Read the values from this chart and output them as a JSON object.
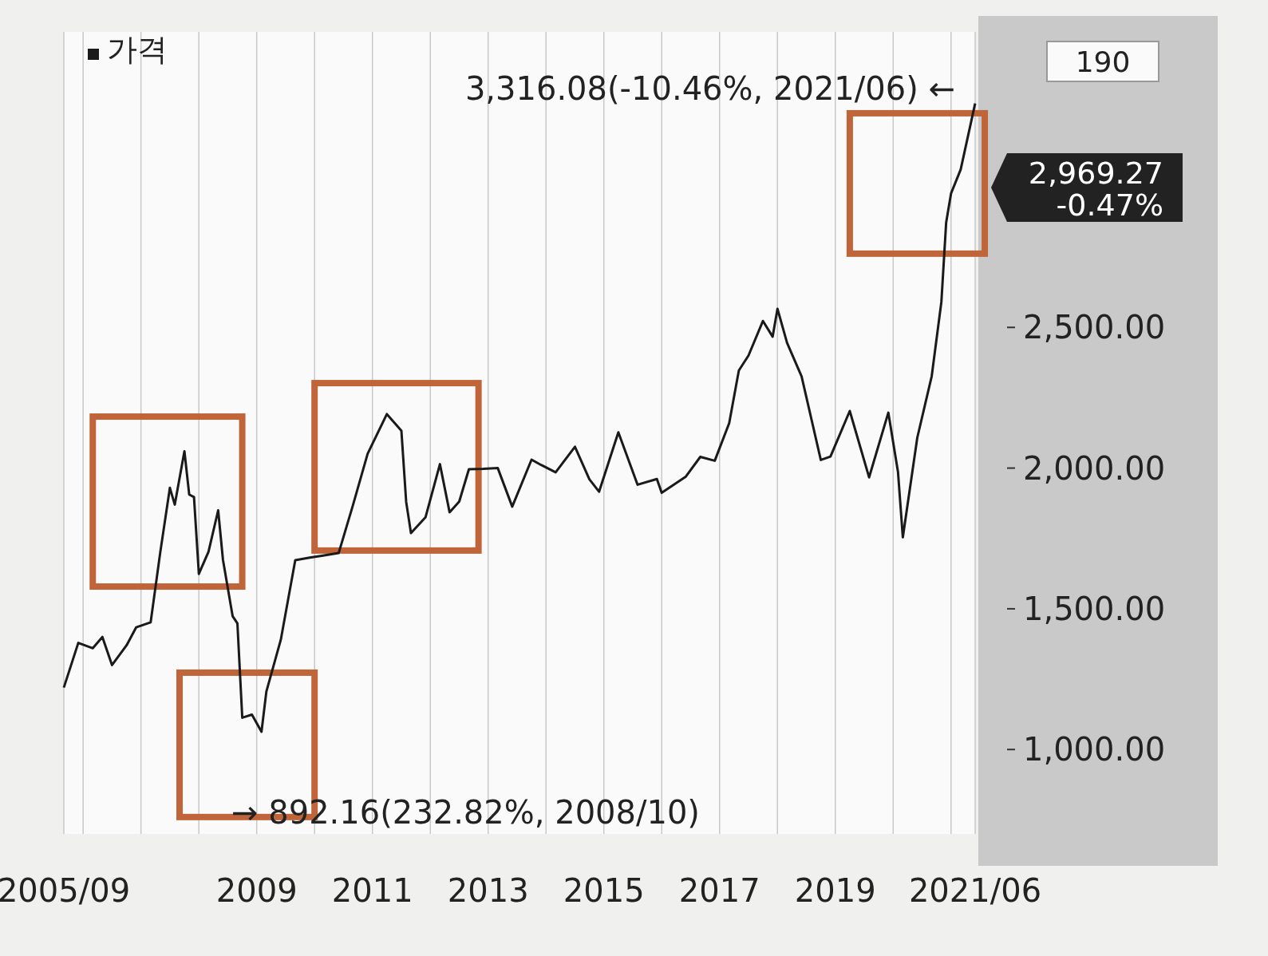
{
  "chart_data": {
    "type": "line",
    "x": [
      "2005-09",
      "2005-12",
      "2006-03",
      "2006-05",
      "2006-07",
      "2006-10",
      "2006-12",
      "2007-03",
      "2007-05",
      "2007-07",
      "2007-08",
      "2007-10",
      "2007-11",
      "2007-12",
      "2008-01",
      "2008-03",
      "2008-05",
      "2008-06",
      "2008-08",
      "2008-09",
      "2008-10",
      "2008-12",
      "2009-02",
      "2009-03",
      "2009-06",
      "2009-09",
      "2009-12",
      "2010-03",
      "2010-06",
      "2010-09",
      "2010-12",
      "2011-04",
      "2011-07",
      "2011-08",
      "2011-09",
      "2011-12",
      "2012-03",
      "2012-05",
      "2012-07",
      "2012-09",
      "2012-12",
      "2013-03",
      "2013-06",
      "2013-10",
      "2013-12",
      "2014-03",
      "2014-07",
      "2014-10",
      "2014-12",
      "2015-04",
      "2015-08",
      "2015-12",
      "2016-01",
      "2016-06",
      "2016-09",
      "2016-12",
      "2017-03",
      "2017-05",
      "2017-07",
      "2017-10",
      "2017-12",
      "2018-01",
      "2018-03",
      "2018-06",
      "2018-10",
      "2018-12",
      "2019-04",
      "2019-08",
      "2019-12",
      "2020-02",
      "2020-03",
      "2020-06",
      "2020-09",
      "2020-11",
      "2020-12",
      "2021-01",
      "2021-03",
      "2021-06"
    ],
    "series": [
      {
        "name": "가격",
        "color": "#1a1a1a",
        "values": [
          1220,
          1379,
          1360,
          1400,
          1300,
          1370,
          1434,
          1452,
          1700,
          1930,
          1870,
          2060,
          1906,
          1897,
          1624,
          1703,
          1850,
          1674,
          1474,
          1448,
          1113,
          1124,
          1063,
          1206,
          1390,
          1673,
          1682,
          1690,
          1698,
          1870,
          2051,
          2192,
          2133,
          1880,
          1769,
          1825,
          2014,
          1843,
          1881,
          1996,
          1997,
          2000,
          1863,
          2030,
          2011,
          1985,
          2076,
          1960,
          1916,
          2127,
          1941,
          1961,
          1912,
          1970,
          2040,
          2026,
          2160,
          2347,
          2400,
          2523,
          2467,
          2566,
          2445,
          2326,
          2029,
          2041,
          2203,
          1967,
          2197,
          1987,
          1754,
          2108,
          2327,
          2591,
          2873,
          2976,
          3061,
          3296
        ]
      }
    ],
    "xlim": [
      "2005-09",
      "2021-06"
    ],
    "xticks": [
      {
        "value": "2005-09",
        "label": "2005/09"
      },
      {
        "value": "2006-01",
        "label": null
      },
      {
        "value": "2007-01",
        "label": null
      },
      {
        "value": "2008-01",
        "label": null
      },
      {
        "value": "2009-01",
        "label": "2009"
      },
      {
        "value": "2010-01",
        "label": null
      },
      {
        "value": "2011-01",
        "label": "2011"
      },
      {
        "value": "2012-01",
        "label": null
      },
      {
        "value": "2013-01",
        "label": "2013"
      },
      {
        "value": "2014-01",
        "label": null
      },
      {
        "value": "2015-01",
        "label": "2015"
      },
      {
        "value": "2016-01",
        "label": null
      },
      {
        "value": "2017-01",
        "label": "2017"
      },
      {
        "value": "2018-01",
        "label": null
      },
      {
        "value": "2019-01",
        "label": "2019"
      },
      {
        "value": "2020-01",
        "label": null
      },
      {
        "value": "2021-01",
        "label": null
      },
      {
        "value": "2021-06",
        "label": "2021/06"
      }
    ],
    "ylim": [
      700,
      3550
    ],
    "yticks": [
      {
        "value": 1000,
        "label": "1,000.00"
      },
      {
        "value": 1500,
        "label": "1,500.00"
      },
      {
        "value": 2000,
        "label": "2,000.00"
      },
      {
        "value": 2500,
        "label": "2,500.00"
      }
    ],
    "grid": "x",
    "legend": "top left",
    "annotations": [
      "3,316.08(-10.46%, 2021/06) ←",
      "→ 892.16(232.82%, 2008/10)",
      "2,969.27",
      "-0.47%",
      "190"
    ]
  }
}
